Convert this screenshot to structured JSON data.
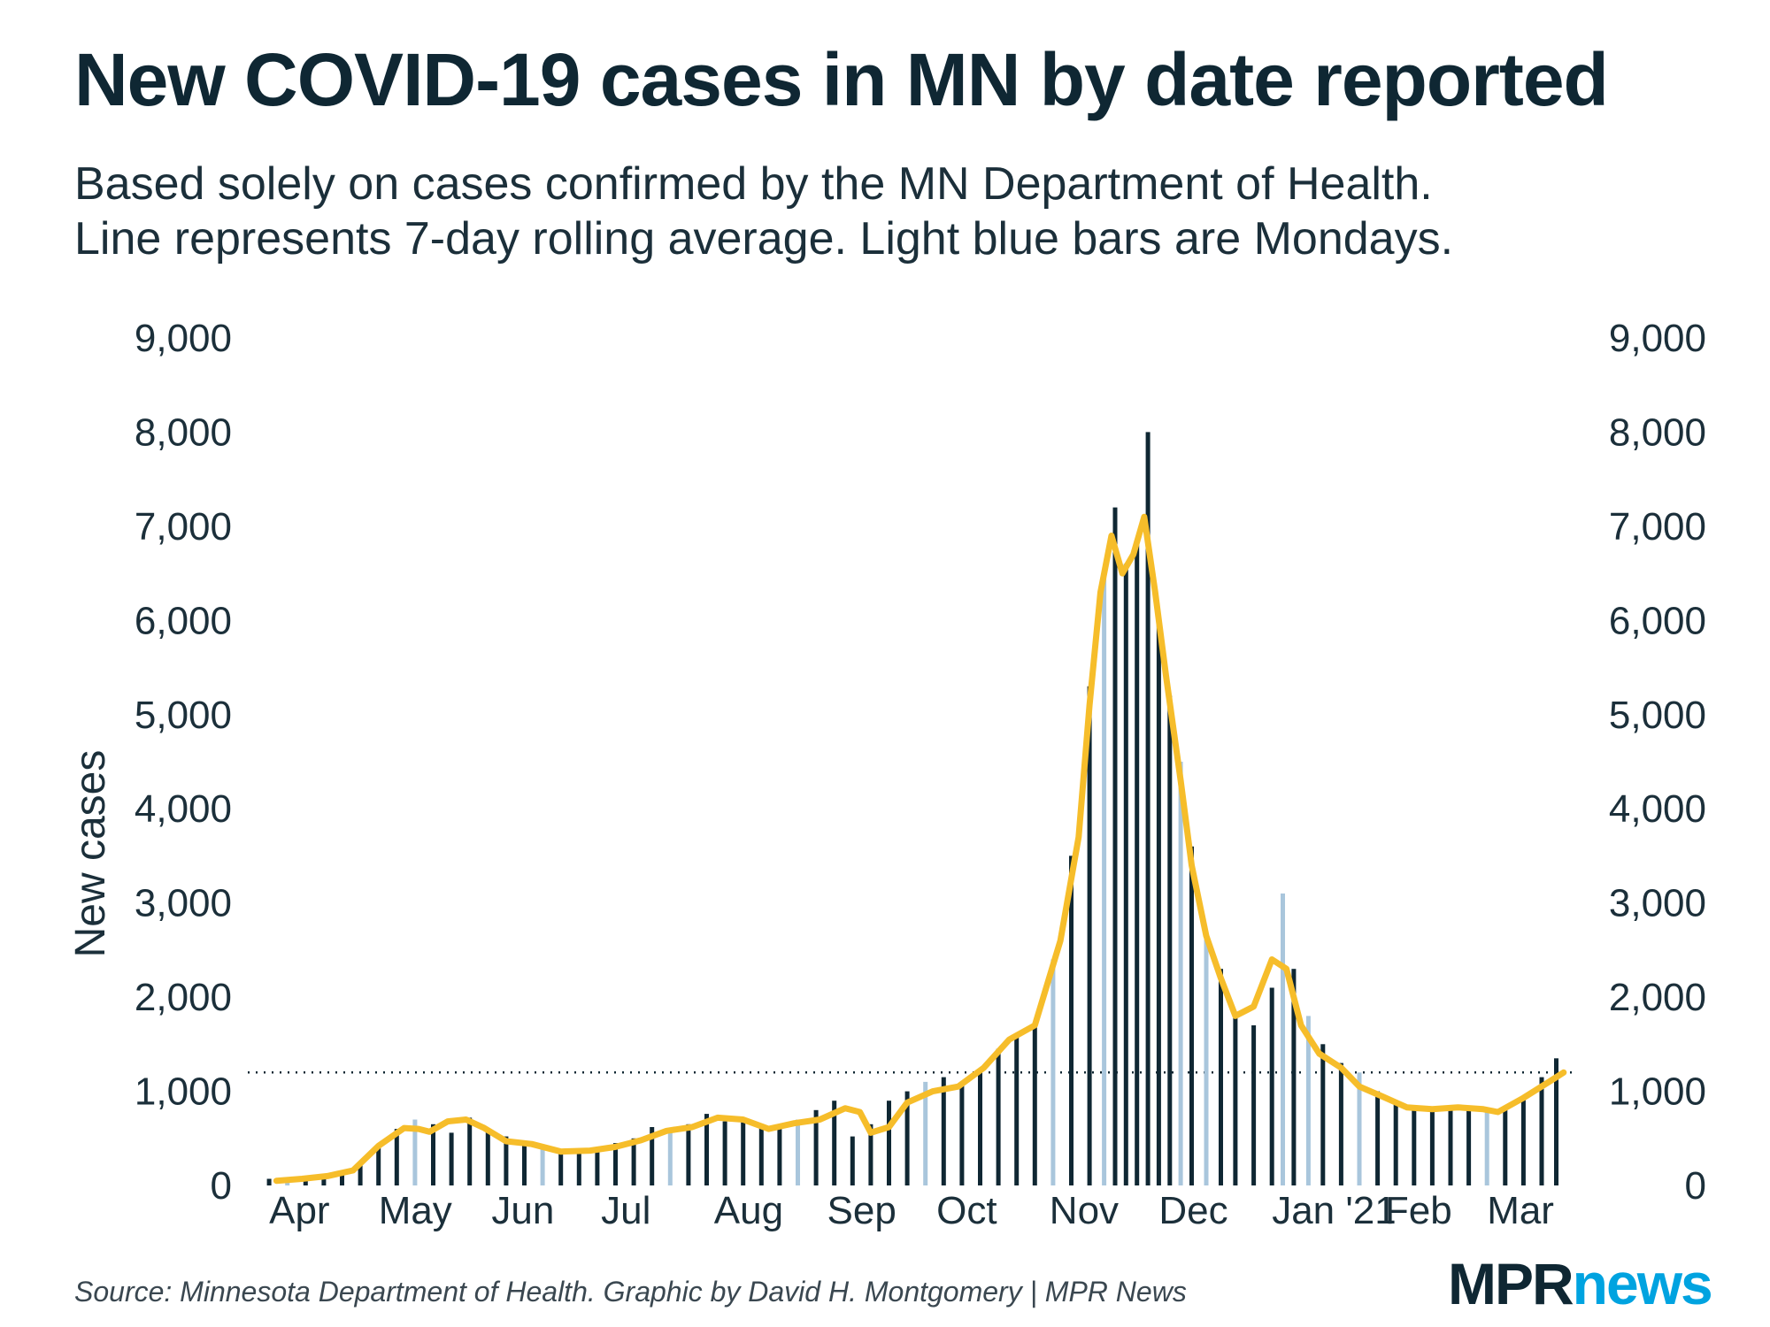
{
  "chart_data": {
    "type": "bar",
    "title": "New COVID-19 cases in MN by date reported",
    "subtitle": [
      "Based solely on cases confirmed by the MN Department of Health.",
      "Line represents 7-day rolling average. Light blue bars are Mondays."
    ],
    "ylabel": "New cases",
    "ylim": [
      0,
      9000
    ],
    "yticks": [
      0,
      1000,
      2000,
      3000,
      4000,
      5000,
      6000,
      7000,
      8000,
      9000
    ],
    "ytick_labels": [
      "0",
      "1,000",
      "2,000",
      "3,000",
      "4,000",
      "5,000",
      "6,000",
      "7,000",
      "8,000",
      "9,000"
    ],
    "xlim": [
      "2020-03-31",
      "2021-03-24"
    ],
    "xticks": [
      {
        "date": "2020-04-01",
        "label": "Apr"
      },
      {
        "date": "2020-05-01",
        "label": "May"
      },
      {
        "date": "2020-06-01",
        "label": "Jun"
      },
      {
        "date": "2020-07-01",
        "label": "Jul"
      },
      {
        "date": "2020-08-01",
        "label": "Aug"
      },
      {
        "date": "2020-09-01",
        "label": "Sep"
      },
      {
        "date": "2020-10-01",
        "label": "Oct"
      },
      {
        "date": "2020-11-01",
        "label": "Nov"
      },
      {
        "date": "2020-12-01",
        "label": "Dec"
      },
      {
        "date": "2021-01-01",
        "label": "Jan '21"
      },
      {
        "date": "2021-02-01",
        "label": "Feb"
      },
      {
        "date": "2021-03-01",
        "label": "Mar"
      }
    ],
    "reference_line": {
      "y": 1200,
      "style": "dotted"
    },
    "series": [
      {
        "kind": "bars",
        "color": "#0f2733",
        "monday_color": "#a9c6dc",
        "points": [
          [
            "2020-04-01",
            70
          ],
          [
            "2020-04-06",
            60
          ],
          [
            "2020-04-11",
            90
          ],
          [
            "2020-04-16",
            120
          ],
          [
            "2020-04-21",
            140
          ],
          [
            "2020-04-26",
            220
          ],
          [
            "2020-05-01",
            400
          ],
          [
            "2020-05-06",
            600
          ],
          [
            "2020-05-11",
            700
          ],
          [
            "2020-05-16",
            650
          ],
          [
            "2020-05-21",
            560
          ],
          [
            "2020-05-26",
            720
          ],
          [
            "2020-05-31",
            600
          ],
          [
            "2020-06-05",
            520
          ],
          [
            "2020-06-10",
            430
          ],
          [
            "2020-06-15",
            430
          ],
          [
            "2020-06-20",
            350
          ],
          [
            "2020-06-25",
            350
          ],
          [
            "2020-06-30",
            400
          ],
          [
            "2020-07-05",
            450
          ],
          [
            "2020-07-10",
            500
          ],
          [
            "2020-07-15",
            620
          ],
          [
            "2020-07-20",
            600
          ],
          [
            "2020-07-25",
            650
          ],
          [
            "2020-07-30",
            760
          ],
          [
            "2020-08-04",
            680
          ],
          [
            "2020-08-09",
            720
          ],
          [
            "2020-08-14",
            640
          ],
          [
            "2020-08-19",
            600
          ],
          [
            "2020-08-24",
            700
          ],
          [
            "2020-08-29",
            800
          ],
          [
            "2020-09-03",
            900
          ],
          [
            "2020-09-08",
            520
          ],
          [
            "2020-09-13",
            650
          ],
          [
            "2020-09-18",
            900
          ],
          [
            "2020-09-23",
            1000
          ],
          [
            "2020-09-28",
            1100
          ],
          [
            "2020-10-03",
            1150
          ],
          [
            "2020-10-08",
            1100
          ],
          [
            "2020-10-13",
            1200
          ],
          [
            "2020-10-18",
            1450
          ],
          [
            "2020-10-23",
            1600
          ],
          [
            "2020-10-28",
            1700
          ],
          [
            "2020-11-02",
            2400
          ],
          [
            "2020-11-07",
            3500
          ],
          [
            "2020-11-12",
            5300
          ],
          [
            "2020-11-16",
            6500
          ],
          [
            "2020-11-19",
            7200
          ],
          [
            "2020-11-22",
            6600
          ],
          [
            "2020-11-25",
            6800
          ],
          [
            "2020-11-28",
            8000
          ],
          [
            "2020-12-01",
            6000
          ],
          [
            "2020-12-04",
            5200
          ],
          [
            "2020-12-07",
            4500
          ],
          [
            "2020-12-10",
            3600
          ],
          [
            "2020-12-14",
            2700
          ],
          [
            "2020-12-18",
            2300
          ],
          [
            "2020-12-22",
            1800
          ],
          [
            "2020-12-27",
            1700
          ],
          [
            "2021-01-01",
            2100
          ],
          [
            "2021-01-04",
            3100
          ],
          [
            "2021-01-07",
            2300
          ],
          [
            "2021-01-11",
            1800
          ],
          [
            "2021-01-15",
            1500
          ],
          [
            "2021-01-20",
            1300
          ],
          [
            "2021-01-25",
            1200
          ],
          [
            "2021-01-30",
            1000
          ],
          [
            "2021-02-04",
            900
          ],
          [
            "2021-02-09",
            850
          ],
          [
            "2021-02-14",
            800
          ],
          [
            "2021-02-19",
            800
          ],
          [
            "2021-02-24",
            850
          ],
          [
            "2021-03-01",
            800
          ],
          [
            "2021-03-06",
            820
          ],
          [
            "2021-03-11",
            950
          ],
          [
            "2021-03-16",
            1150
          ],
          [
            "2021-03-20",
            1350
          ]
        ]
      },
      {
        "kind": "line",
        "color": "#f6bd2a",
        "points": [
          [
            "2020-04-03",
            50
          ],
          [
            "2020-04-10",
            70
          ],
          [
            "2020-04-17",
            100
          ],
          [
            "2020-04-24",
            160
          ],
          [
            "2020-05-01",
            420
          ],
          [
            "2020-05-08",
            610
          ],
          [
            "2020-05-12",
            600
          ],
          [
            "2020-05-15",
            570
          ],
          [
            "2020-05-20",
            680
          ],
          [
            "2020-05-25",
            700
          ],
          [
            "2020-05-30",
            610
          ],
          [
            "2020-06-05",
            470
          ],
          [
            "2020-06-12",
            440
          ],
          [
            "2020-06-20",
            360
          ],
          [
            "2020-06-28",
            370
          ],
          [
            "2020-07-05",
            410
          ],
          [
            "2020-07-12",
            480
          ],
          [
            "2020-07-19",
            580
          ],
          [
            "2020-07-26",
            620
          ],
          [
            "2020-08-02",
            720
          ],
          [
            "2020-08-09",
            700
          ],
          [
            "2020-08-16",
            600
          ],
          [
            "2020-08-23",
            660
          ],
          [
            "2020-08-30",
            700
          ],
          [
            "2020-09-06",
            820
          ],
          [
            "2020-09-10",
            780
          ],
          [
            "2020-09-13",
            560
          ],
          [
            "2020-09-18",
            620
          ],
          [
            "2020-09-23",
            880
          ],
          [
            "2020-09-30",
            1000
          ],
          [
            "2020-10-07",
            1050
          ],
          [
            "2020-10-14",
            1250
          ],
          [
            "2020-10-21",
            1550
          ],
          [
            "2020-10-28",
            1700
          ],
          [
            "2020-11-04",
            2600
          ],
          [
            "2020-11-09",
            3700
          ],
          [
            "2020-11-12",
            5100
          ],
          [
            "2020-11-15",
            6300
          ],
          [
            "2020-11-18",
            6900
          ],
          [
            "2020-11-21",
            6500
          ],
          [
            "2020-11-24",
            6700
          ],
          [
            "2020-11-27",
            7100
          ],
          [
            "2020-11-30",
            6300
          ],
          [
            "2020-12-03",
            5400
          ],
          [
            "2020-12-07",
            4300
          ],
          [
            "2020-12-10",
            3400
          ],
          [
            "2020-12-14",
            2650
          ],
          [
            "2020-12-18",
            2200
          ],
          [
            "2020-12-22",
            1800
          ],
          [
            "2020-12-27",
            1900
          ],
          [
            "2021-01-01",
            2400
          ],
          [
            "2021-01-05",
            2300
          ],
          [
            "2021-01-09",
            1700
          ],
          [
            "2021-01-14",
            1400
          ],
          [
            "2021-01-20",
            1250
          ],
          [
            "2021-01-25",
            1050
          ],
          [
            "2021-01-31",
            950
          ],
          [
            "2021-02-07",
            830
          ],
          [
            "2021-02-14",
            810
          ],
          [
            "2021-02-21",
            830
          ],
          [
            "2021-02-28",
            810
          ],
          [
            "2021-03-04",
            780
          ],
          [
            "2021-03-11",
            930
          ],
          [
            "2021-03-18",
            1100
          ],
          [
            "2021-03-22",
            1200
          ]
        ]
      }
    ],
    "source": "Source: Minnesota Department of Health. Graphic by David H. Montgomery | MPR News",
    "logo": {
      "part1": "MPR",
      "part2": "news"
    }
  }
}
